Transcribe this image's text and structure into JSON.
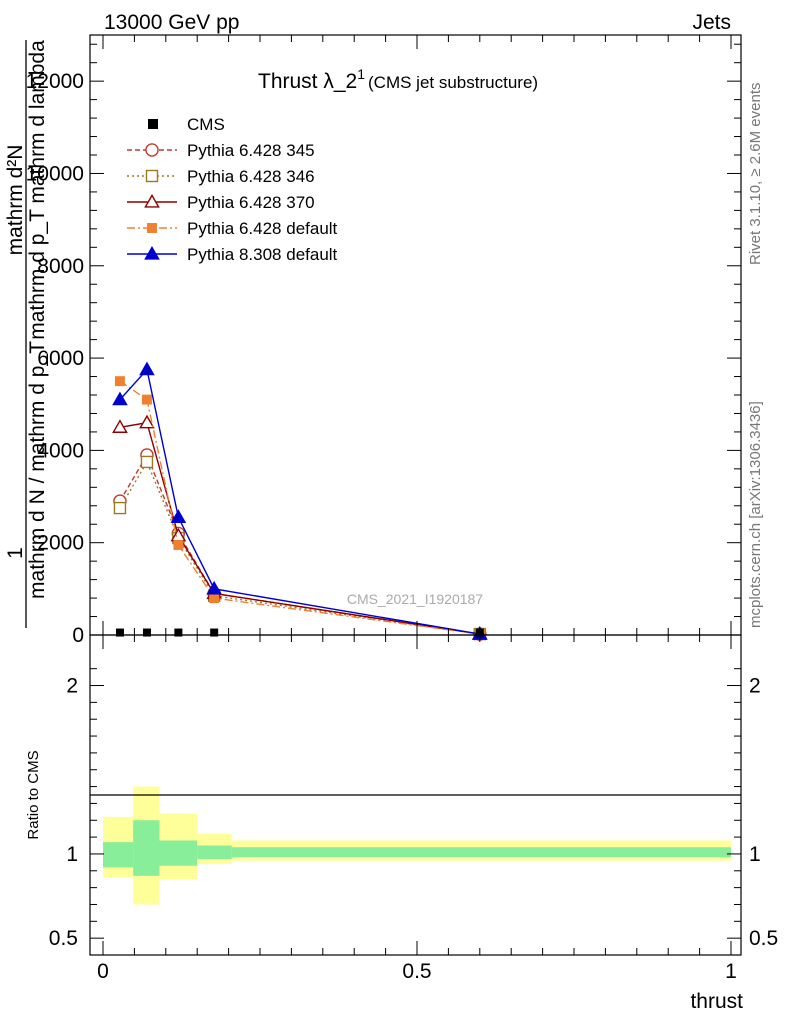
{
  "header": {
    "left": "13000 GeV pp",
    "right": "Jets"
  },
  "title": {
    "main": "Thrust λ_2",
    "sup": "1",
    "sub": "(CMS jet substructure)"
  },
  "side_labels": {
    "rivet": "Rivet 3.1.10, ≥ 2.6M events",
    "mcplots": "mcplots.cern.ch [arXiv:1306.3436]"
  },
  "watermark": "CMS_2021_I1920187",
  "ylabel_top": {
    "numerator": "mathrm d²N",
    "denominator": "mathrm d p_T mathrm d lambda",
    "prefactor_num": "1",
    "prefactor_den": "mathrm d N / mathrm d p_T"
  },
  "ylabel_ratio": "Ratio to CMS",
  "xlabel": "thrust",
  "colors": {
    "cms": "#000000",
    "p345": "#c0392b",
    "p346": "#9c7a20",
    "p370": "#8b0000",
    "p6def": "#f08030",
    "p8def": "#0000cc",
    "band_outer": "#ffff99",
    "band_inner": "#88ee99"
  },
  "chart_data": {
    "type": "line",
    "xlim": [
      0,
      1
    ],
    "ylim": [
      0,
      13000
    ],
    "ratio_ylim": [
      0.4,
      2.3
    ],
    "x_ticks": [
      "0",
      "0.5",
      "1"
    ],
    "y_ticks": [
      "0",
      "2000",
      "4000",
      "6000",
      "8000",
      "10000",
      "12000"
    ],
    "ratio_ticks": [
      "0.5",
      "1",
      "2"
    ],
    "cms": {
      "name": "CMS",
      "x": [
        0.027,
        0.07,
        0.12,
        0.177,
        0.6
      ],
      "y": [
        10,
        10,
        10,
        10,
        10
      ]
    },
    "series": [
      {
        "name": "Pythia 6.428 345",
        "key": "p345",
        "marker": "circle-open",
        "dash": "5,3",
        "x": [
          0.027,
          0.07,
          0.12,
          0.177,
          0.6
        ],
        "y": [
          2900,
          3900,
          2200,
          900,
          20
        ]
      },
      {
        "name": "Pythia 6.428 346",
        "key": "p346",
        "marker": "square-open",
        "dash": "2,3",
        "x": [
          0.027,
          0.07,
          0.12,
          0.177,
          0.6
        ],
        "y": [
          2750,
          3750,
          2100,
          850,
          20
        ]
      },
      {
        "name": "Pythia 6.428 370",
        "key": "p370",
        "marker": "triangle-open",
        "dash": "",
        "x": [
          0.027,
          0.07,
          0.12,
          0.177,
          0.6
        ],
        "y": [
          4500,
          4600,
          2150,
          900,
          20
        ]
      },
      {
        "name": "Pythia 6.428 default",
        "key": "p6def",
        "marker": "square-filled",
        "dash": "8,3,2,3",
        "x": [
          0.027,
          0.07,
          0.12,
          0.177,
          0.6
        ],
        "y": [
          5500,
          5100,
          1950,
          800,
          20
        ]
      },
      {
        "name": "Pythia 8.308 default",
        "key": "p8def",
        "marker": "triangle-filled",
        "dash": "",
        "x": [
          0.027,
          0.07,
          0.12,
          0.177,
          0.6
        ],
        "y": [
          5100,
          5750,
          2550,
          1000,
          20
        ]
      }
    ],
    "ratio_bands": [
      {
        "x0": 0.0,
        "x1": 0.048,
        "outer": [
          0.86,
          1.22
        ],
        "inner": [
          0.92,
          1.07
        ]
      },
      {
        "x0": 0.048,
        "x1": 0.09,
        "outer": [
          0.7,
          1.4
        ],
        "inner": [
          0.87,
          1.2
        ]
      },
      {
        "x0": 0.09,
        "x1": 0.15,
        "outer": [
          0.85,
          1.24
        ],
        "inner": [
          0.93,
          1.08
        ]
      },
      {
        "x0": 0.15,
        "x1": 0.205,
        "outer": [
          0.94,
          1.12
        ],
        "inner": [
          0.97,
          1.05
        ]
      },
      {
        "x0": 0.205,
        "x1": 1.0,
        "outer": [
          0.96,
          1.08
        ],
        "inner": [
          0.98,
          1.04
        ]
      }
    ]
  }
}
